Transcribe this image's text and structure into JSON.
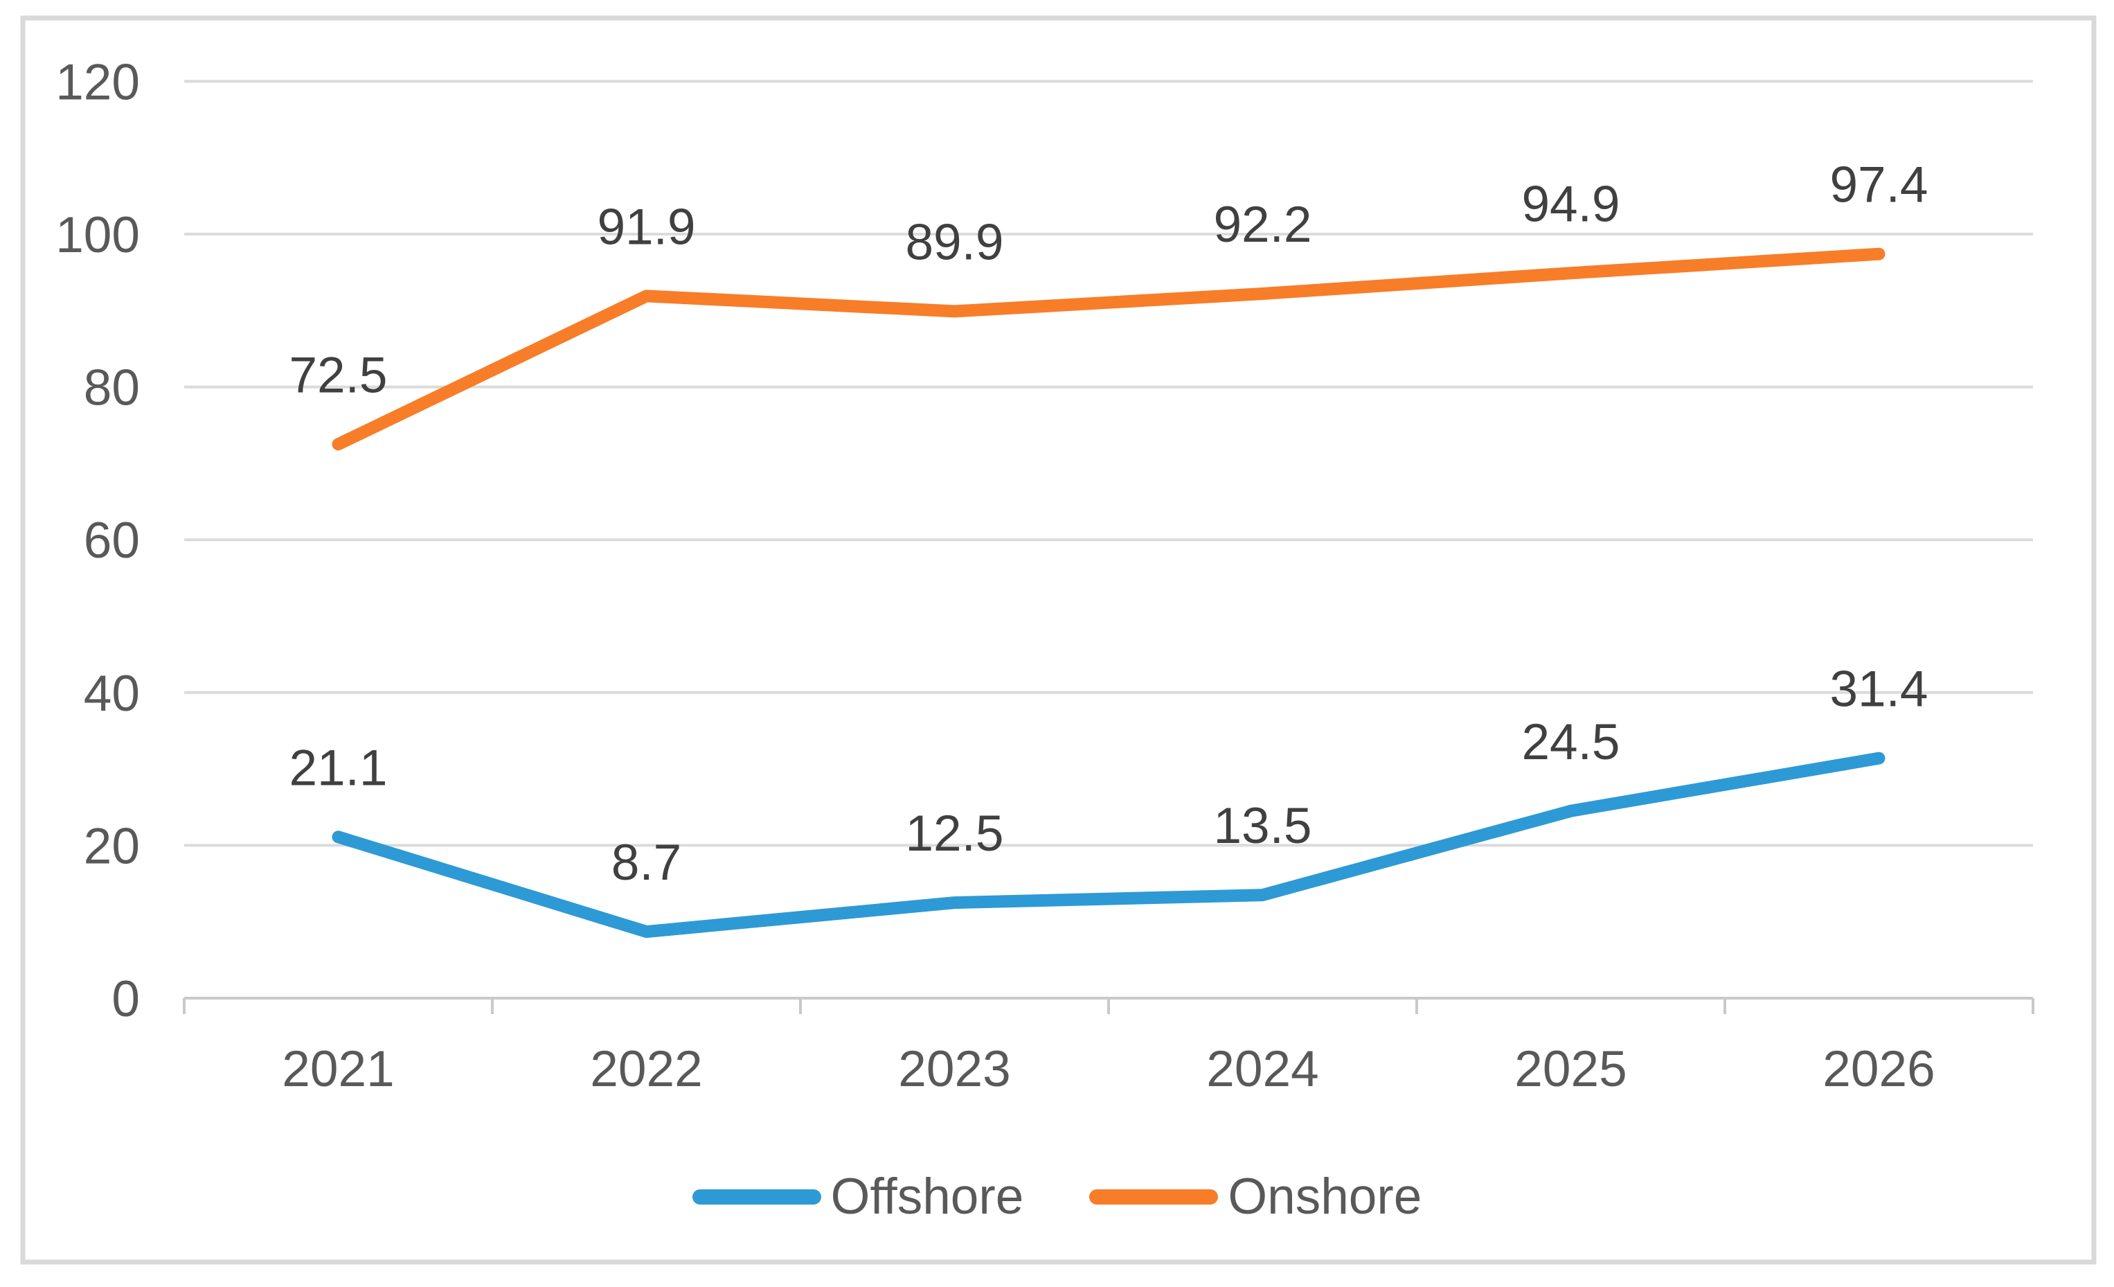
{
  "chart_data": {
    "type": "line",
    "title": "",
    "xlabel": "",
    "ylabel": "",
    "categories": [
      "2021",
      "2022",
      "2023",
      "2024",
      "2025",
      "2026"
    ],
    "series": [
      {
        "name": "Offshore",
        "color": "#2D9AD5",
        "values": [
          21.1,
          8.7,
          12.5,
          13.5,
          24.5,
          31.4
        ]
      },
      {
        "name": "Onshore",
        "color": "#F87D29",
        "values": [
          72.5,
          91.9,
          89.9,
          92.2,
          94.9,
          97.4
        ]
      }
    ],
    "ylim": [
      0,
      120
    ],
    "yticks": [
      0,
      20,
      40,
      60,
      80,
      100,
      120
    ],
    "grid": true,
    "data_labels": true,
    "markers": false,
    "legend_position": "bottom"
  },
  "legend": {
    "offshore_label": "Offshore",
    "onshore_label": "Onshore"
  },
  "colors": {
    "background": "#FFFFFF",
    "border": "#D9D9D9",
    "gridline": "#DBDBDB",
    "axis": "#C9C9C9",
    "tick_label": "#595959",
    "data_label": "#404040"
  }
}
